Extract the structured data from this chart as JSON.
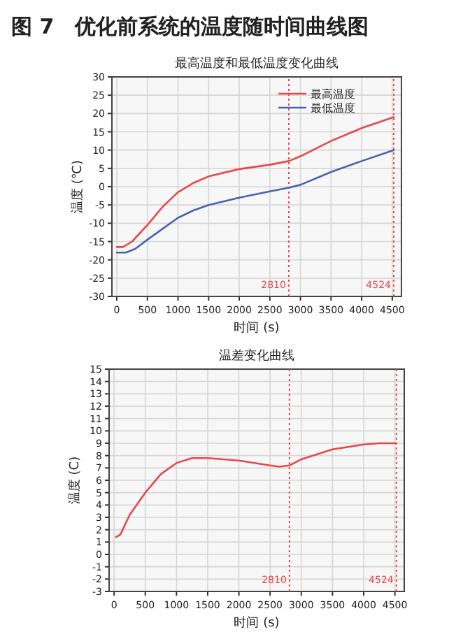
{
  "chart_data": [
    {
      "type": "line",
      "title": "图 7　优化前系统的温度随时间曲线图",
      "subtitle": "最高温度和最低温度变化曲线",
      "xlabel": "时间 (s)",
      "ylabel": "温度 (℃)",
      "xlim": [
        -80,
        4650
      ],
      "ylim": [
        -30,
        30
      ],
      "xticks": [
        0,
        500,
        1000,
        1500,
        2000,
        2500,
        3000,
        3500,
        4000,
        4500
      ],
      "yticks": [
        -30,
        -25,
        -20,
        -15,
        -10,
        -5,
        0,
        5,
        10,
        15,
        20,
        25,
        30
      ],
      "grid": true,
      "legend": "top right",
      "series": [
        {
          "name": "最高温度",
          "color": "#e8474c",
          "x": [
            0,
            100,
            250,
            500,
            750,
            1000,
            1250,
            1500,
            2000,
            2500,
            2810,
            3000,
            3500,
            4000,
            4524
          ],
          "values": [
            -16.5,
            -16.5,
            -15,
            -10.5,
            -5.5,
            -1.5,
            1,
            2.8,
            4.8,
            6,
            7,
            8.3,
            12.5,
            16,
            19
          ]
        },
        {
          "name": "最低温度",
          "color": "#4a62b0",
          "x": [
            0,
            150,
            300,
            500,
            750,
            1000,
            1250,
            1500,
            2000,
            2500,
            2810,
            3000,
            3500,
            4000,
            4524
          ],
          "values": [
            -18,
            -18,
            -17,
            -14.5,
            -11.5,
            -8.5,
            -6.5,
            -5,
            -3,
            -1.3,
            -0.3,
            0.5,
            4,
            7,
            10
          ]
        }
      ],
      "ref_lines": [
        {
          "axis": "x",
          "value": 2810,
          "label": "2810",
          "color": "#e8474c",
          "line_style": "dotted"
        },
        {
          "axis": "x",
          "value": 4524,
          "label": "4524",
          "color": "#e8474c",
          "line_style": "dotted"
        }
      ]
    },
    {
      "type": "line",
      "title": "温差变化曲线",
      "xlabel": "时间 (s)",
      "ylabel": "温度 (C)",
      "xlim": [
        -80,
        4650
      ],
      "ylim": [
        -3,
        15
      ],
      "xticks": [
        0,
        500,
        1000,
        1500,
        2000,
        2500,
        3000,
        3500,
        4000,
        4500
      ],
      "yticks": [
        -3,
        -2,
        -1,
        0,
        1,
        2,
        3,
        4,
        5,
        6,
        7,
        8,
        9,
        10,
        11,
        12,
        13,
        14,
        15
      ],
      "grid": true,
      "series": [
        {
          "color": "#e8474c",
          "x": [
            30,
            100,
            250,
            500,
            750,
            1000,
            1250,
            1500,
            2000,
            2500,
            2650,
            2810,
            3000,
            3500,
            4000,
            4250,
            4524
          ],
          "values": [
            1.4,
            1.6,
            3.2,
            5,
            6.5,
            7.4,
            7.8,
            7.8,
            7.6,
            7.2,
            7.1,
            7.2,
            7.7,
            8.5,
            8.9,
            9,
            9
          ]
        }
      ],
      "ref_lines": [
        {
          "axis": "x",
          "value": 2810,
          "label": "2810",
          "color": "#e8474c",
          "line_style": "dotted"
        },
        {
          "axis": "x",
          "value": 4524,
          "label": "4524",
          "color": "#e8474c",
          "line_style": "dotted"
        }
      ]
    }
  ]
}
